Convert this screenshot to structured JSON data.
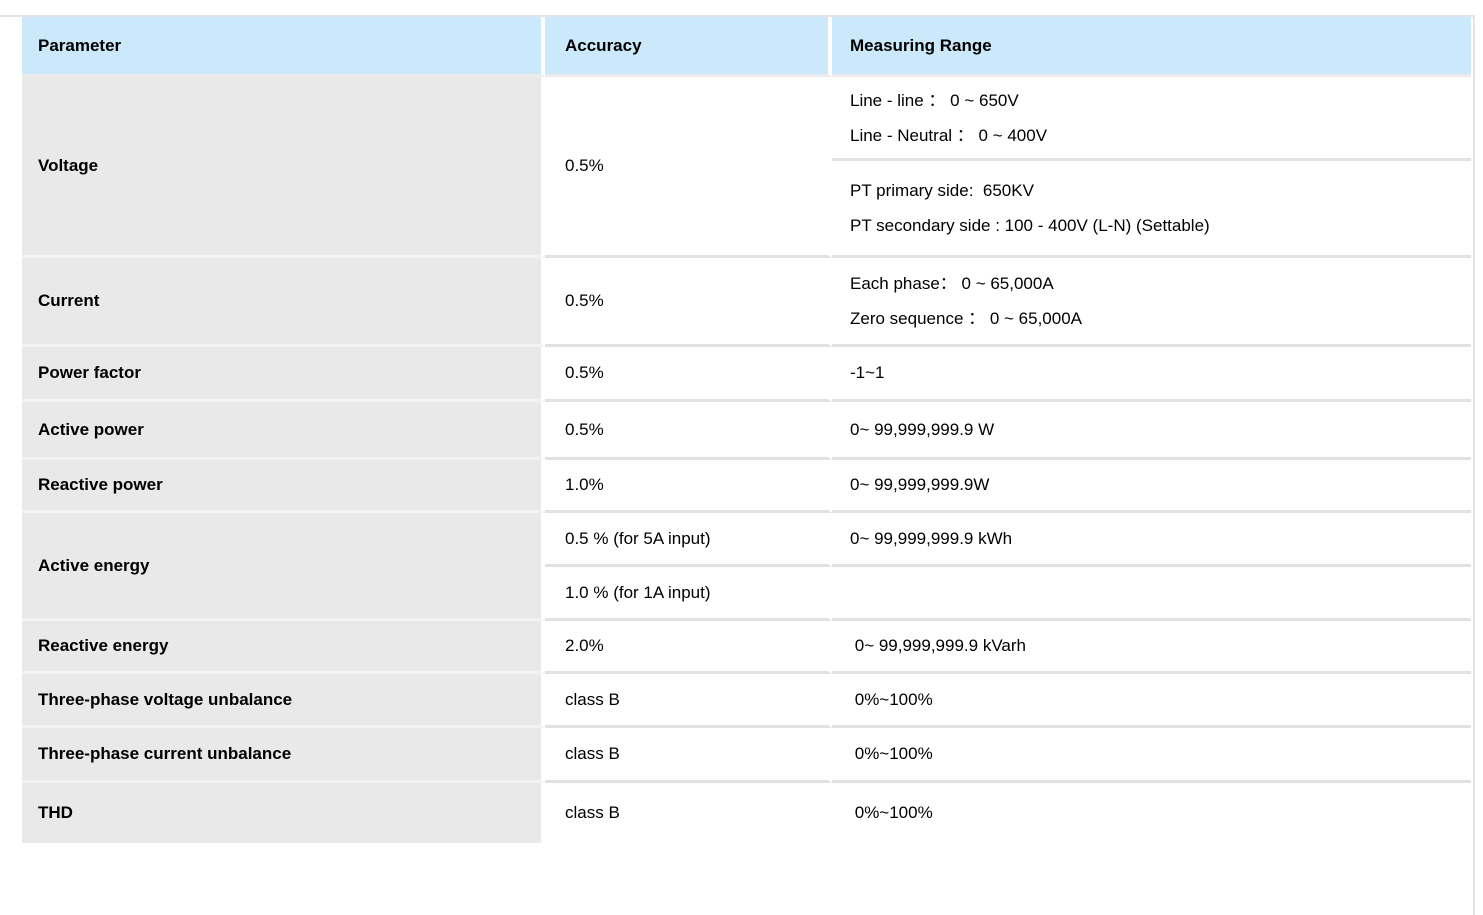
{
  "colors": {
    "header_bg": "#cce9fb",
    "parameter_bg": "#e9e9e9",
    "divider": "#e2e2e2",
    "page_bg": "#ffffff",
    "text": "#000000"
  },
  "table": {
    "headers": {
      "parameter": "Parameter",
      "accuracy": "Accuracy",
      "range": "Measuring Range"
    },
    "voltage": {
      "parameter": "Voltage",
      "accuracy": "0.5%",
      "range_a_line1": "Line - line ： 0 ~ 650V",
      "range_a_line2": "Line - Neutral ： 0 ~ 400V",
      "range_b_line1": "PT primary side:  650KV",
      "range_b_line2": "PT secondary side : 100 - 400V (L-N) (Settable)"
    },
    "current": {
      "parameter": "Current",
      "accuracy": "0.5%",
      "range_line1": "Each phase： 0 ~ 65,000A",
      "range_line2": "Zero sequence ： 0 ~ 65,000A"
    },
    "power_factor": {
      "parameter": "Power factor",
      "accuracy": "0.5%",
      "range": "-1~1"
    },
    "active_power": {
      "parameter": "Active power",
      "accuracy": "0.5%",
      "range": "0~ 99,999,999.9 W"
    },
    "reactive_power": {
      "parameter": "Reactive power",
      "accuracy": "1.0%",
      "range": "0~ 99,999,999.9W"
    },
    "active_energy": {
      "parameter": "Active energy",
      "accuracy_5a": "0.5 % (for 5A input)",
      "accuracy_1a": "1.0 % (for 1A input)",
      "range": "0~ 99,999,999.9 kWh",
      "range_second": ""
    },
    "reactive_energy": {
      "parameter": "Reactive energy",
      "accuracy": "2.0%",
      "range": " 0~ 99,999,999.9 kVarh"
    },
    "voltage_unbalance": {
      "parameter": "Three-phase voltage unbalance",
      "accuracy": "class B",
      "range": " 0%~100%"
    },
    "current_unbalance": {
      "parameter": "Three-phase current unbalance",
      "accuracy": "class B",
      "range": " 0%~100%"
    },
    "thd": {
      "parameter": "THD",
      "accuracy": "class B",
      "range": " 0%~100%"
    }
  }
}
